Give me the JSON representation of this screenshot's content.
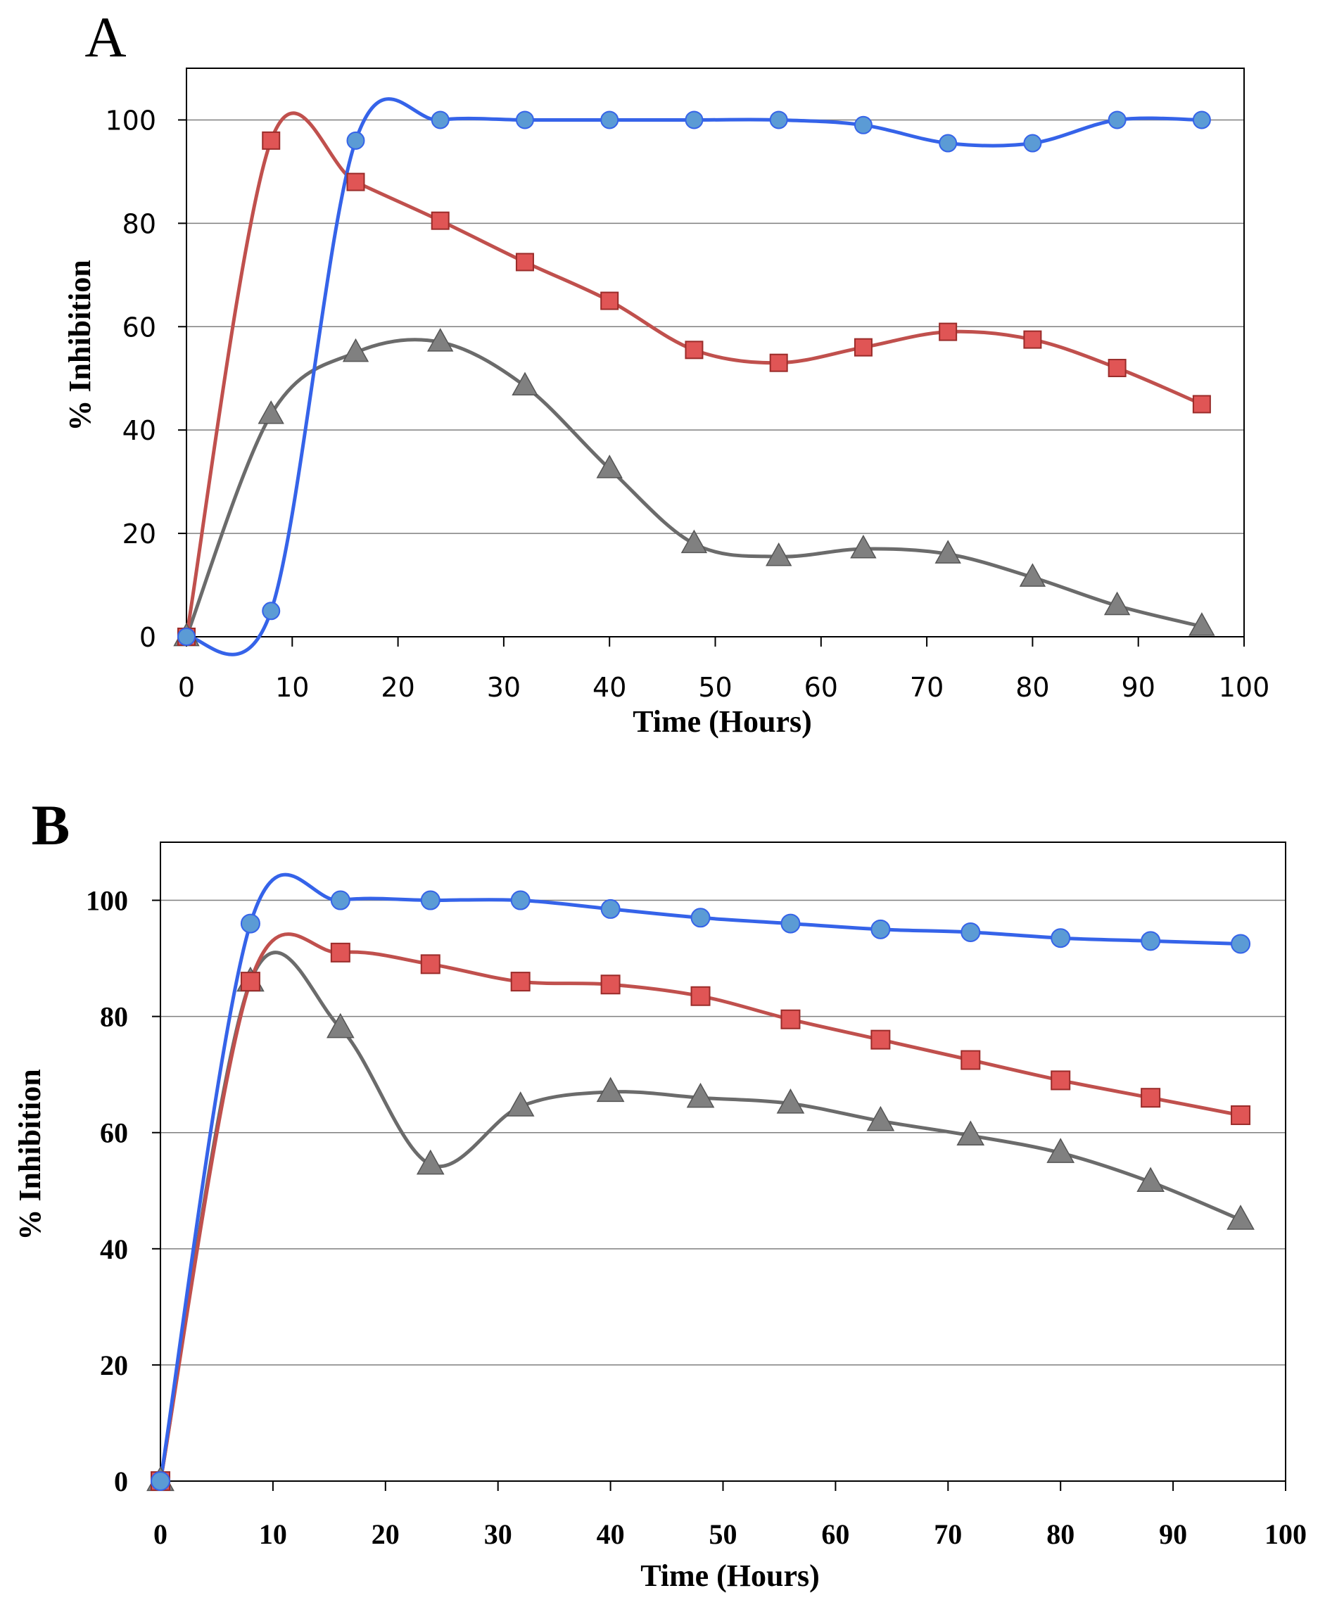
{
  "colors": {
    "blue_line": "#3563e9",
    "blue_marker": "#5b9bd5",
    "red_line": "#c0504d",
    "red_marker": "#e05555",
    "gray_line": "#6b6b6b",
    "gray_marker": "#808080",
    "grid": "#7f7f7f",
    "frame": "#000000"
  },
  "chart_data": [
    {
      "type": "line",
      "panel_label": "A",
      "title": "",
      "xlabel": "Time (Hours)",
      "ylabel": "% Inhibition",
      "xlim": [
        0,
        100
      ],
      "ylim": [
        0,
        110
      ],
      "x_ticks": [
        "0",
        "10",
        "20",
        "30",
        "40",
        "50",
        "60",
        "70",
        "80",
        "90",
        "100"
      ],
      "y_ticks": [
        "0",
        "20",
        "40",
        "60",
        "80",
        "100"
      ],
      "grid": "horizontal",
      "x": [
        0,
        8,
        16,
        24,
        32,
        40,
        48,
        56,
        64,
        72,
        80,
        88,
        96
      ],
      "series": [
        {
          "name": "series-blue-circle",
          "marker": "circle",
          "color": "blue",
          "values": [
            0,
            5,
            96,
            100,
            100,
            100,
            100,
            100,
            99,
            95.5,
            95.5,
            100,
            100
          ]
        },
        {
          "name": "series-red-square",
          "marker": "square",
          "color": "red",
          "values": [
            0,
            96,
            88,
            80.5,
            72.5,
            65,
            55.5,
            53,
            56,
            59,
            57.5,
            52,
            45
          ]
        },
        {
          "name": "series-gray-triangle",
          "marker": "triangle",
          "color": "gray",
          "values": [
            0,
            43,
            55,
            57,
            48.5,
            32.5,
            18,
            15.5,
            17,
            16,
            11.5,
            6,
            2
          ]
        }
      ]
    },
    {
      "type": "line",
      "panel_label": "B",
      "title": "",
      "xlabel": "Time (Hours)",
      "ylabel": "% Inhibition",
      "xlim": [
        0,
        100
      ],
      "ylim": [
        0,
        110
      ],
      "x_ticks": [
        "0",
        "10",
        "20",
        "30",
        "40",
        "50",
        "60",
        "70",
        "80",
        "90",
        "100"
      ],
      "y_ticks": [
        "0",
        "20",
        "40",
        "60",
        "80",
        "100"
      ],
      "grid": "horizontal",
      "x": [
        0,
        8,
        16,
        24,
        32,
        40,
        48,
        56,
        64,
        72,
        80,
        88,
        96
      ],
      "series": [
        {
          "name": "series-blue-circle",
          "marker": "circle",
          "color": "blue",
          "values": [
            0,
            96,
            100,
            100,
            100,
            98.5,
            97,
            96,
            95,
            94.5,
            93.5,
            93,
            92.5
          ]
        },
        {
          "name": "series-red-square",
          "marker": "square",
          "color": "red",
          "values": [
            0,
            86,
            91,
            89,
            86,
            85.5,
            83.5,
            79.5,
            76,
            72.5,
            69,
            66,
            63
          ]
        },
        {
          "name": "series-gray-triangle",
          "marker": "triangle",
          "color": "gray",
          "values": [
            0,
            86,
            78,
            54.5,
            64.5,
            67,
            66,
            65,
            62,
            59.5,
            56.5,
            51.5,
            45
          ]
        }
      ]
    }
  ]
}
